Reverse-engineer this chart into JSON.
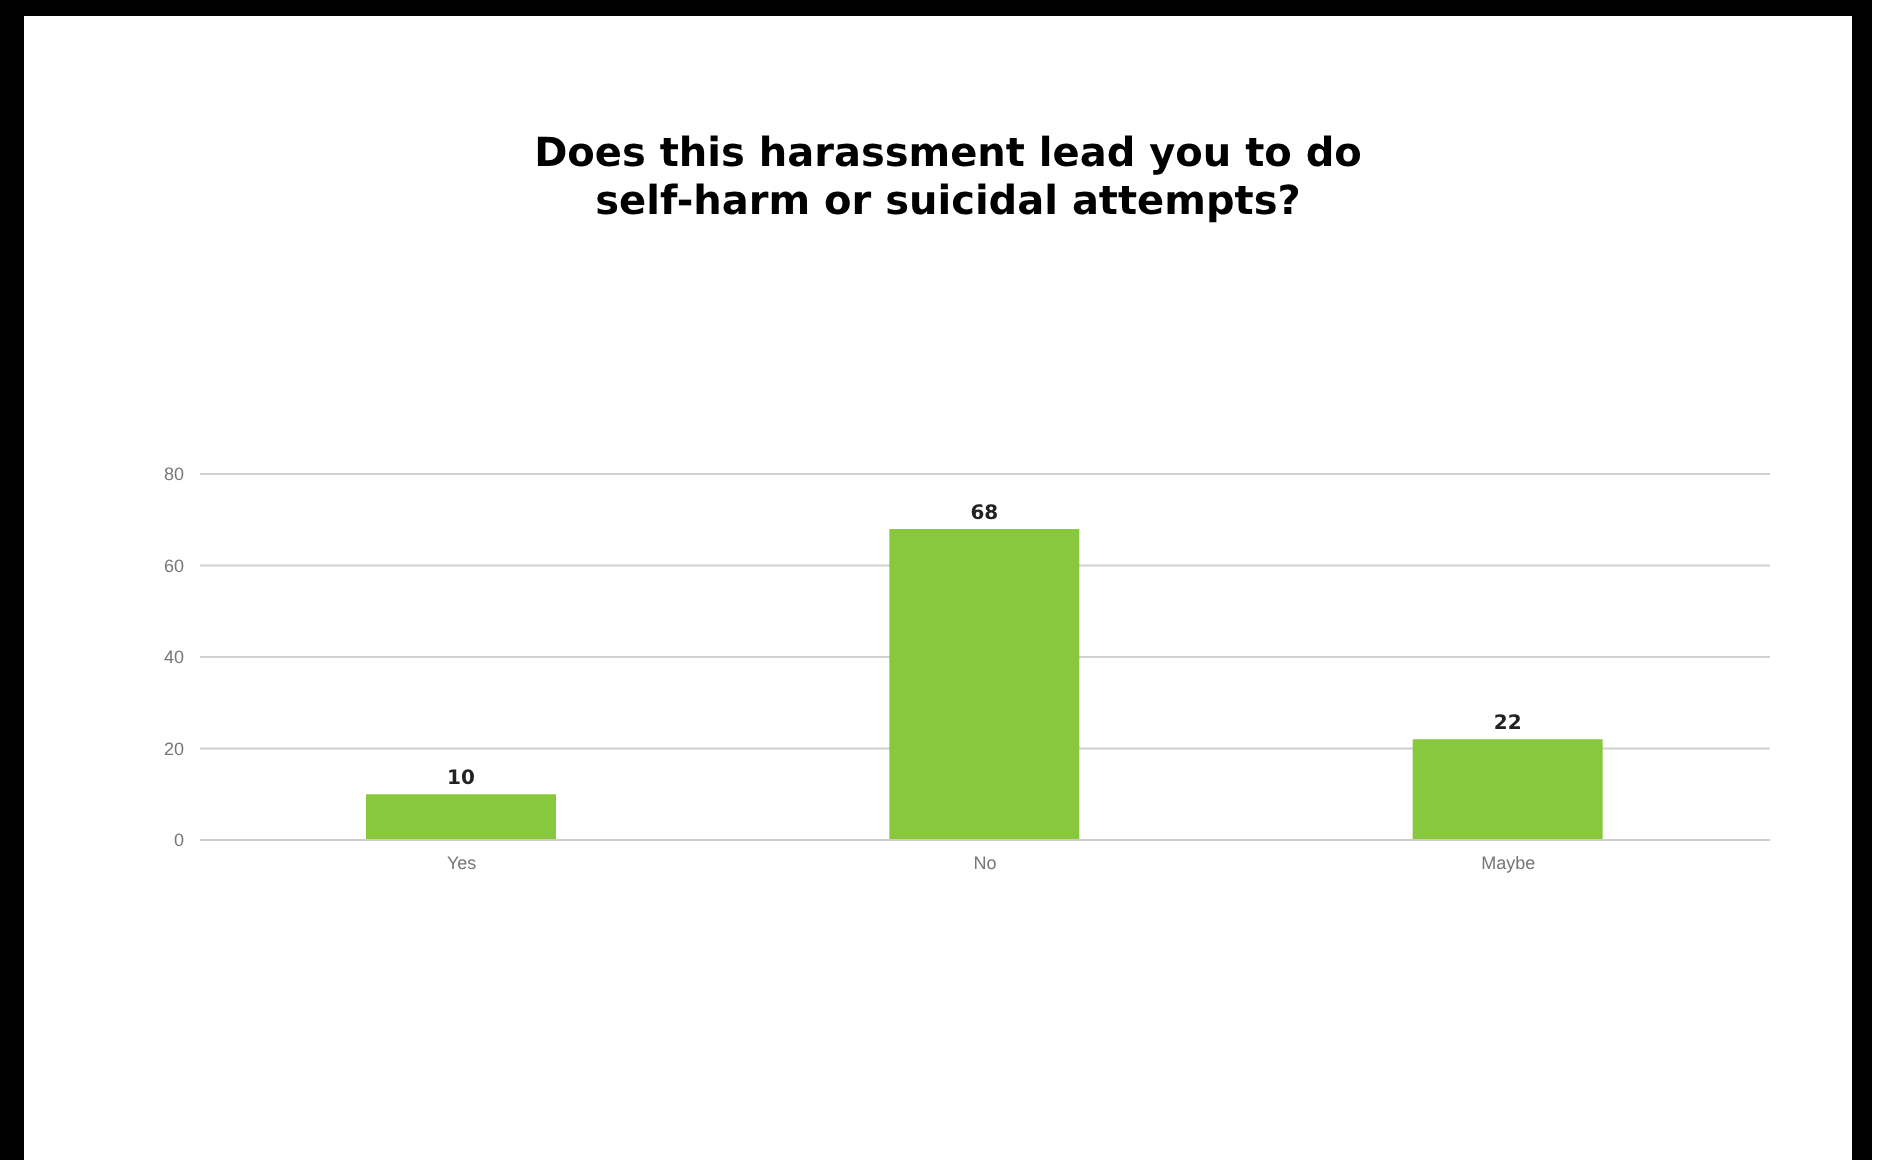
{
  "chart_data": {
    "type": "bar",
    "title": "Does this harassment lead you to do\nself-harm or suicidal attempts?",
    "categories": [
      "Yes",
      "No",
      "Maybe"
    ],
    "values": [
      10,
      68,
      22
    ],
    "color": "#88c83c",
    "ylim": [
      0,
      80
    ],
    "yticks": [
      0,
      20,
      40,
      60,
      80
    ],
    "grid": "y",
    "data_labels": true
  }
}
